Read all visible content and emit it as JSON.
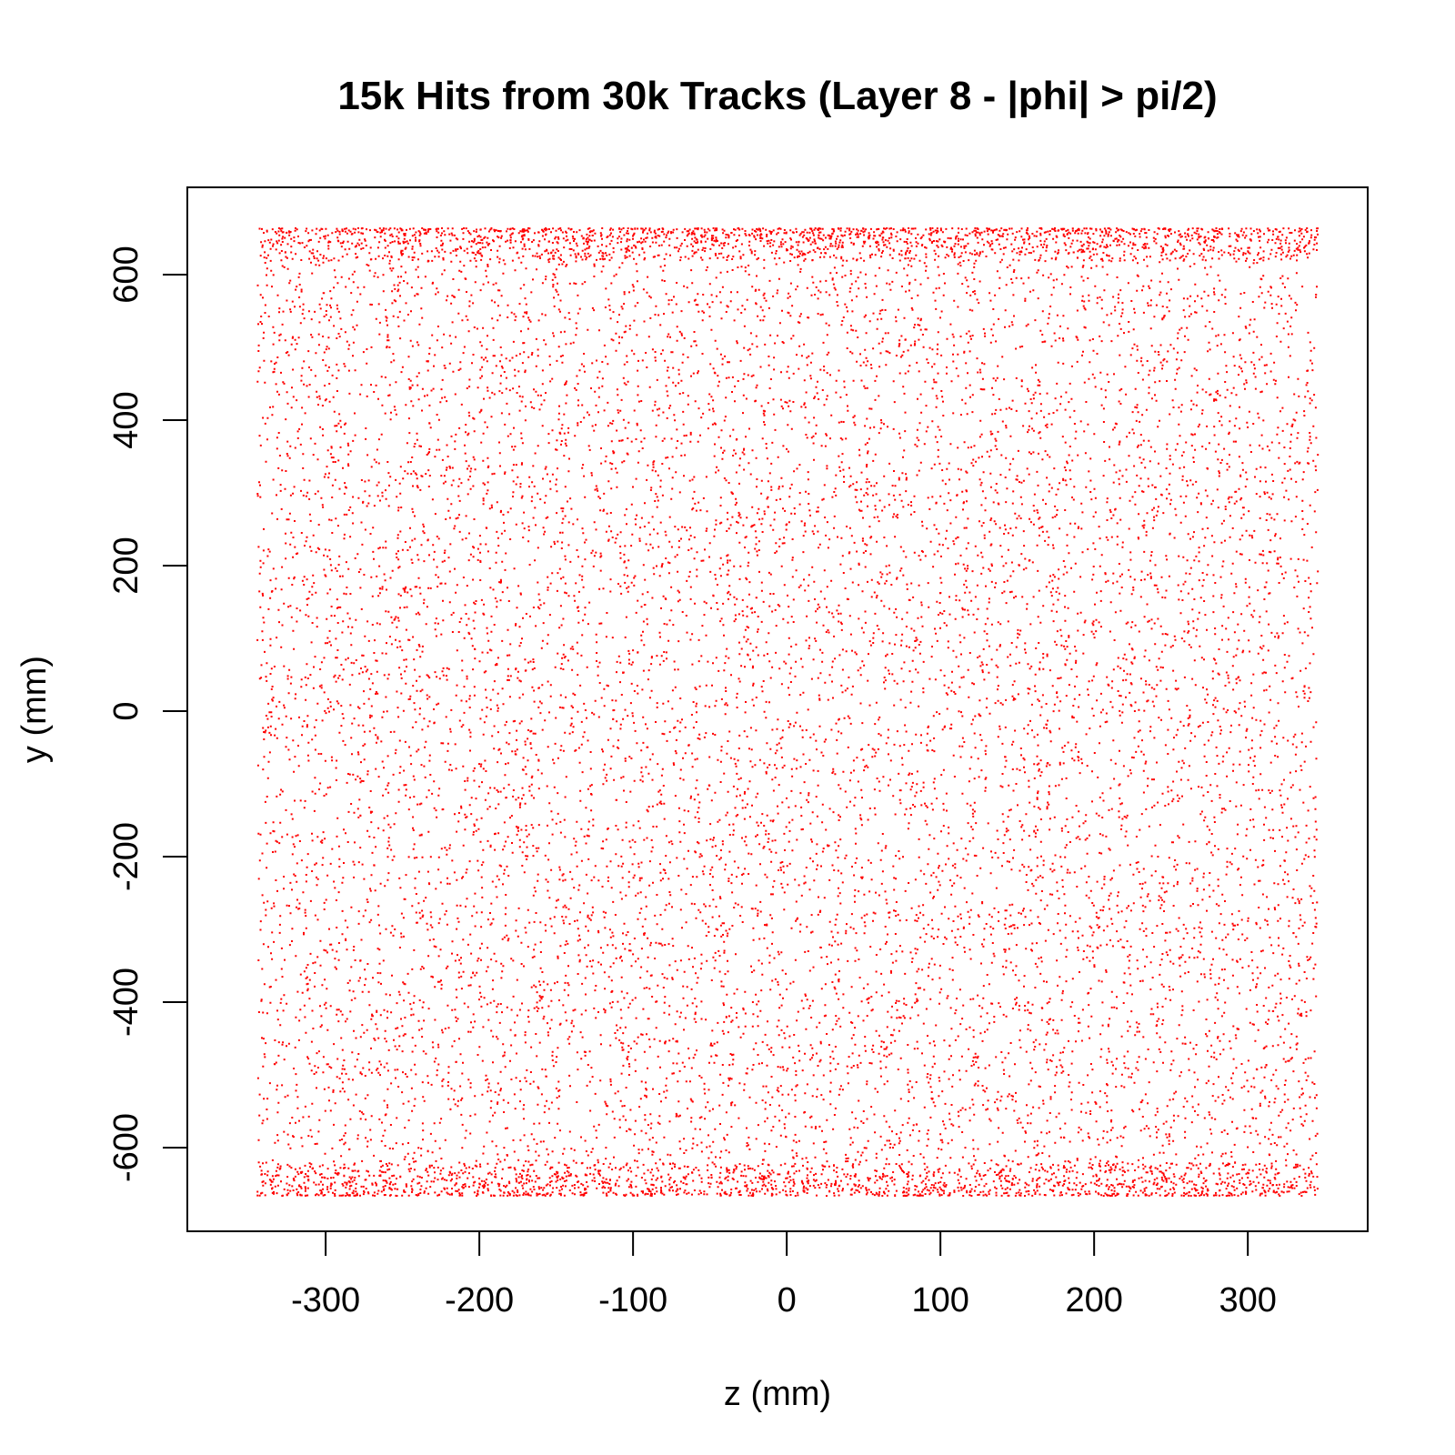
{
  "chart_data": {
    "type": "scatter",
    "title": "15k Hits from 30k Tracks (Layer 8 - |phi| > pi/2)",
    "xlabel": "z (mm)",
    "ylabel": "y (mm)",
    "xlim": [
      -390,
      378
    ],
    "ylim": [
      -715,
      720
    ],
    "x_ticks": [
      -300,
      -200,
      -100,
      0,
      100,
      200,
      300
    ],
    "y_ticks": [
      -600,
      -400,
      -200,
      0,
      200,
      400,
      600
    ],
    "x_tick_labels": [
      "-300",
      "-200",
      "-100",
      "0",
      "100",
      "200",
      "300"
    ],
    "y_tick_labels": [
      "-600",
      "-400",
      "-200",
      "0",
      "200",
      "400",
      "600"
    ],
    "grid": false,
    "legend": "none",
    "point_color": "#ff0000",
    "point_count": 15000,
    "x_range": [
      -345,
      345
    ],
    "y_range": [
      -665,
      665
    ],
    "distribution": "approximately uniform in z; denser near |y| ~ 640-665 (edges of the layer, where |phi| approaches pi)"
  }
}
